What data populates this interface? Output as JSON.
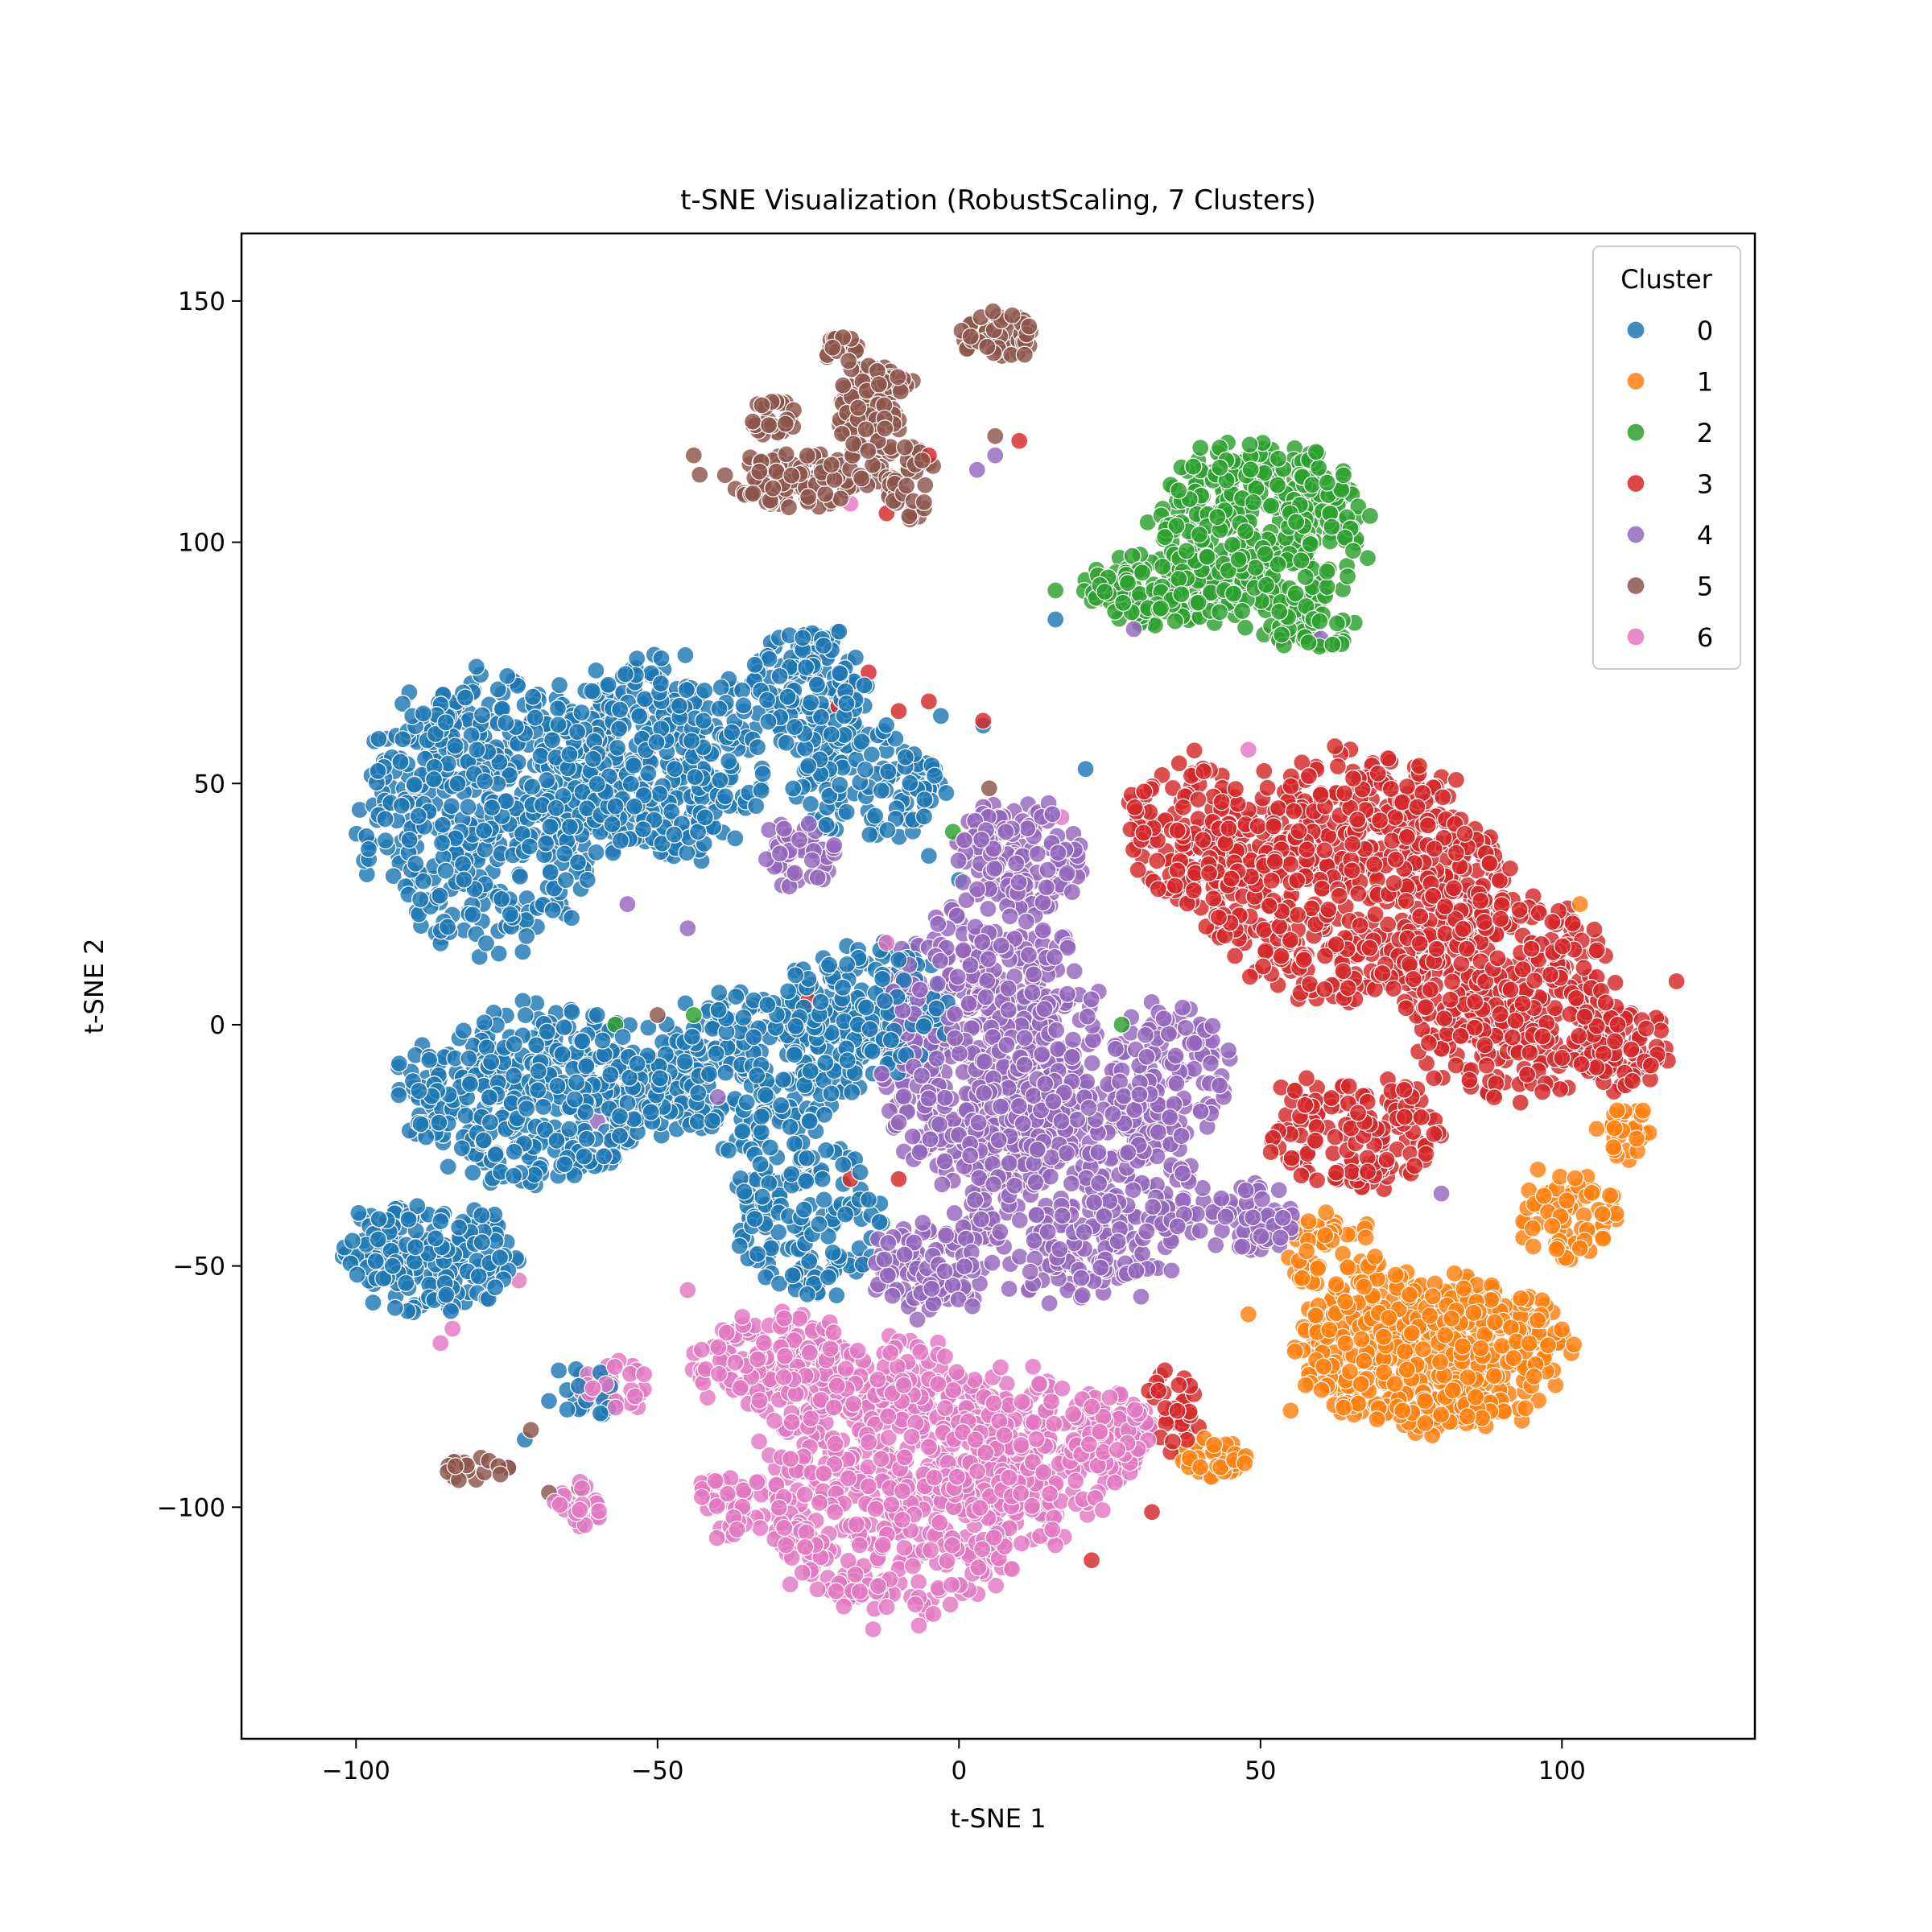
{
  "chart_data": {
    "type": "scatter",
    "title": "t-SNE Visualization (RobustScaling, 7 Clusters)",
    "xlabel": "t-SNE 1",
    "ylabel": "t-SNE 2",
    "xlim": [
      -119,
      132
    ],
    "ylim": [
      -148,
      164
    ],
    "xticks": [
      -100,
      -50,
      0,
      50,
      100
    ],
    "yticks": [
      -100,
      -50,
      0,
      50,
      100,
      150
    ],
    "xtick_labels": [
      "−100",
      "−50",
      "0",
      "50",
      "100"
    ],
    "ytick_labels": [
      "−100",
      "−50",
      "0",
      "50",
      "100",
      "150"
    ],
    "grid": false,
    "legend": {
      "title": "Cluster",
      "position": "top-right"
    },
    "series": [
      {
        "name": "0",
        "color": "#1f77b4",
        "regions": [
          {
            "cx": -78,
            "cy": 45,
            "rx": 20,
            "ry": 28,
            "n": 520
          },
          {
            "cx": -50,
            "cy": 55,
            "rx": 18,
            "ry": 20,
            "n": 360
          },
          {
            "cx": -25,
            "cy": 70,
            "rx": 10,
            "ry": 12,
            "n": 150
          },
          {
            "cx": -15,
            "cy": 50,
            "rx": 12,
            "ry": 12,
            "n": 120
          },
          {
            "cx": -70,
            "cy": -15,
            "rx": 22,
            "ry": 18,
            "n": 420
          },
          {
            "cx": -35,
            "cy": -10,
            "rx": 18,
            "ry": 16,
            "n": 240
          },
          {
            "cx": -15,
            "cy": 2,
            "rx": 14,
            "ry": 14,
            "n": 200
          },
          {
            "cx": -88,
            "cy": -48,
            "rx": 14,
            "ry": 12,
            "n": 200
          },
          {
            "cx": -25,
            "cy": -40,
            "rx": 12,
            "ry": 16,
            "n": 150
          },
          {
            "cx": -62,
            "cy": -75,
            "rx": 6,
            "ry": 6,
            "n": 25
          }
        ],
        "outliers": [
          [
            -5,
            35
          ],
          [
            0,
            30
          ],
          [
            4,
            62
          ],
          [
            16,
            84
          ],
          [
            21,
            53
          ],
          [
            -3,
            64
          ],
          [
            -68,
            -78
          ],
          [
            -72,
            -86
          ]
        ]
      },
      {
        "name": "1",
        "color": "#ff7f0e",
        "regions": [
          {
            "cx": 78,
            "cy": -68,
            "rx": 22,
            "ry": 16,
            "n": 480
          },
          {
            "cx": 100,
            "cy": -40,
            "rx": 9,
            "ry": 9,
            "n": 70
          },
          {
            "cx": 62,
            "cy": -48,
            "rx": 8,
            "ry": 9,
            "n": 60
          },
          {
            "cx": 42,
            "cy": -90,
            "rx": 6,
            "ry": 4,
            "n": 40
          },
          {
            "cx": 110,
            "cy": -22,
            "rx": 5,
            "ry": 6,
            "n": 30
          }
        ],
        "outliers": [
          [
            103,
            25
          ],
          [
            96,
            -30
          ],
          [
            55,
            -80
          ],
          [
            48,
            -60
          ]
        ]
      },
      {
        "name": "2",
        "color": "#2ca02c",
        "regions": [
          {
            "cx": 50,
            "cy": 102,
            "rx": 17,
            "ry": 18,
            "n": 420
          },
          {
            "cx": 35,
            "cy": 90,
            "rx": 15,
            "ry": 7,
            "n": 140
          },
          {
            "cx": 58,
            "cy": 82,
            "rx": 8,
            "ry": 4,
            "n": 40
          }
        ],
        "outliers": [
          [
            -1,
            40
          ],
          [
            6,
            8
          ],
          [
            27,
            0
          ],
          [
            -57,
            0
          ],
          [
            -44,
            2
          ],
          [
            16,
            90
          ]
        ]
      },
      {
        "name": "3",
        "color": "#d62728",
        "regions": [
          {
            "cx": 65,
            "cy": 30,
            "rx": 25,
            "ry": 25,
            "n": 650
          },
          {
            "cx": 92,
            "cy": 5,
            "rx": 18,
            "ry": 20,
            "n": 360
          },
          {
            "cx": 110,
            "cy": -5,
            "rx": 8,
            "ry": 10,
            "n": 80
          },
          {
            "cx": 65,
            "cy": -22,
            "rx": 14,
            "ry": 12,
            "n": 160
          },
          {
            "cx": 38,
            "cy": 40,
            "rx": 10,
            "ry": 15,
            "n": 140
          },
          {
            "cx": 35,
            "cy": -80,
            "rx": 5,
            "ry": 8,
            "n": 30
          }
        ],
        "outliers": [
          [
            -20,
            66
          ],
          [
            -15,
            73
          ],
          [
            -10,
            65
          ],
          [
            -5,
            67
          ],
          [
            4,
            63
          ],
          [
            -8,
            55
          ],
          [
            10,
            121
          ],
          [
            -5,
            118
          ],
          [
            -12,
            106
          ],
          [
            22,
            -111
          ],
          [
            -18,
            -32
          ],
          [
            -10,
            -32
          ],
          [
            80,
            -5
          ],
          [
            119,
            9
          ],
          [
            32,
            -101
          ],
          [
            -25,
            5
          ],
          [
            60,
            48
          ]
        ]
      },
      {
        "name": "4",
        "color": "#9467bd",
        "regions": [
          {
            "cx": 5,
            "cy": -5,
            "rx": 18,
            "ry": 28,
            "n": 560
          },
          {
            "cx": 20,
            "cy": -35,
            "rx": 20,
            "ry": 22,
            "n": 360
          },
          {
            "cx": 35,
            "cy": -10,
            "rx": 10,
            "ry": 14,
            "n": 120
          },
          {
            "cx": 10,
            "cy": 35,
            "rx": 10,
            "ry": 12,
            "n": 140
          },
          {
            "cx": -27,
            "cy": 35,
            "rx": 6,
            "ry": 7,
            "n": 45
          },
          {
            "cx": -5,
            "cy": -50,
            "rx": 10,
            "ry": 10,
            "n": 100
          },
          {
            "cx": 48,
            "cy": -40,
            "rx": 8,
            "ry": 7,
            "n": 60
          }
        ],
        "outliers": [
          [
            3,
            115
          ],
          [
            6,
            118
          ],
          [
            -55,
            25
          ],
          [
            -45,
            20
          ],
          [
            33,
            86
          ],
          [
            29,
            82
          ],
          [
            60,
            80
          ],
          [
            80,
            -35
          ],
          [
            100,
            -40
          ],
          [
            -60,
            -20
          ],
          [
            -40,
            -15
          ]
        ]
      },
      {
        "name": "5",
        "color": "#8c564b",
        "regions": [
          {
            "cx": -15,
            "cy": 125,
            "rx": 5,
            "ry": 12,
            "n": 90
          },
          {
            "cx": -27,
            "cy": 113,
            "rx": 12,
            "ry": 6,
            "n": 90
          },
          {
            "cx": -31,
            "cy": 126,
            "rx": 4,
            "ry": 4,
            "n": 25
          },
          {
            "cx": -12,
            "cy": 133,
            "rx": 4,
            "ry": 3,
            "n": 20
          },
          {
            "cx": -20,
            "cy": 140,
            "rx": 3,
            "ry": 3,
            "n": 20
          },
          {
            "cx": 6,
            "cy": 143,
            "rx": 7,
            "ry": 5,
            "n": 50
          },
          {
            "cx": -8,
            "cy": 112,
            "rx": 4,
            "ry": 8,
            "n": 40
          },
          {
            "cx": -80,
            "cy": -92,
            "rx": 6,
            "ry": 3,
            "n": 18
          }
        ],
        "outliers": [
          [
            -44,
            118
          ],
          [
            -43,
            114
          ],
          [
            6,
            122
          ],
          [
            -71,
            -84
          ],
          [
            -68,
            -97
          ],
          [
            5,
            49
          ],
          [
            -50,
            2
          ],
          [
            -63,
            -96
          ]
        ]
      },
      {
        "name": "6",
        "color": "#e377c2",
        "regions": [
          {
            "cx": -10,
            "cy": -95,
            "rx": 22,
            "ry": 28,
            "n": 600
          },
          {
            "cx": 10,
            "cy": -90,
            "rx": 15,
            "ry": 18,
            "n": 220
          },
          {
            "cx": -30,
            "cy": -70,
            "rx": 14,
            "ry": 10,
            "n": 160
          },
          {
            "cx": -40,
            "cy": -100,
            "rx": 5,
            "ry": 6,
            "n": 40
          },
          {
            "cx": 25,
            "cy": -85,
            "rx": 7,
            "ry": 10,
            "n": 80
          },
          {
            "cx": -63,
            "cy": -100,
            "rx": 4,
            "ry": 5,
            "n": 25
          },
          {
            "cx": -57,
            "cy": -75,
            "rx": 6,
            "ry": 6,
            "n": 30
          }
        ],
        "outliers": [
          [
            -84,
            -63
          ],
          [
            -86,
            -66
          ],
          [
            -12,
            17
          ],
          [
            -3,
            16
          ],
          [
            48,
            57
          ],
          [
            -73,
            -53
          ],
          [
            -45,
            -55
          ],
          [
            17,
            43
          ],
          [
            -18,
            108
          ]
        ]
      }
    ]
  }
}
